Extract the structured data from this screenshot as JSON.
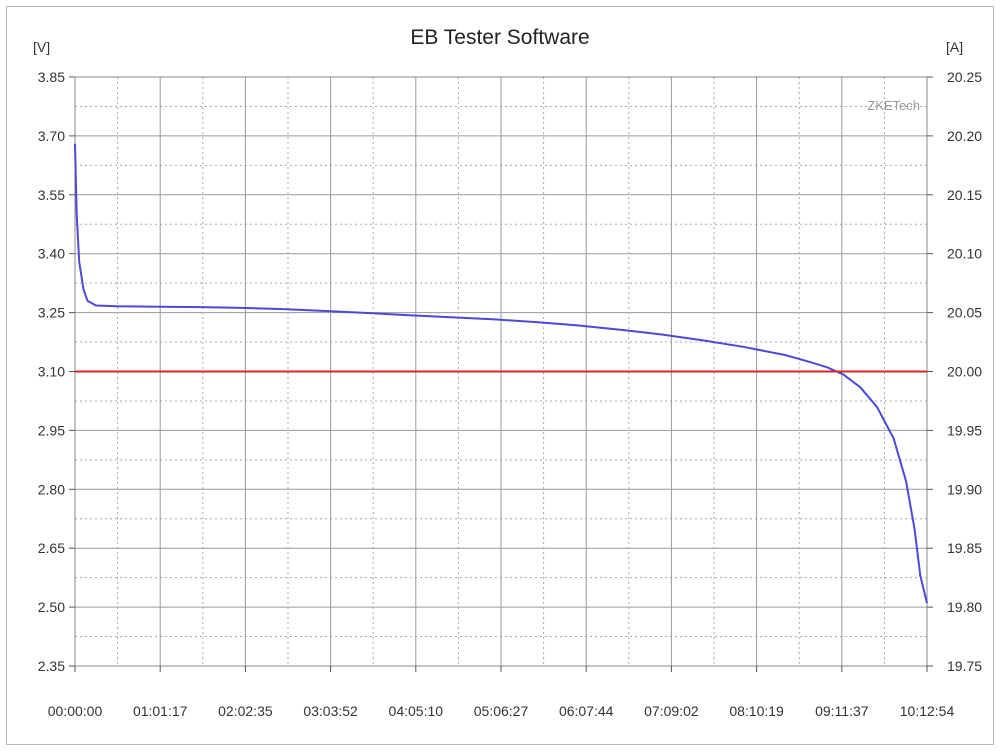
{
  "window": {
    "title": "EB Tester Software"
  },
  "chart_data": {
    "type": "line",
    "title": "EB Tester Software",
    "watermark": "ZKETech",
    "y_left": {
      "unit": "[V]",
      "range": [
        2.35,
        3.85
      ],
      "ticks": [
        "3.85",
        "3.70",
        "3.55",
        "3.40",
        "3.25",
        "3.10",
        "2.95",
        "2.80",
        "2.65",
        "2.50",
        "2.35"
      ]
    },
    "y_right": {
      "unit": "[A]",
      "range": [
        19.75,
        20.25
      ],
      "ticks": [
        "20.25",
        "20.20",
        "20.15",
        "20.10",
        "20.05",
        "20.00",
        "19.95",
        "19.90",
        "19.85",
        "19.80",
        "19.75"
      ]
    },
    "x": {
      "ticks": [
        "00:00:00",
        "01:01:17",
        "02:02:35",
        "03:03:52",
        "04:05:10",
        "05:06:27",
        "06:07:44",
        "07:09:02",
        "08:10:19",
        "09:11:37",
        "10:12:54"
      ]
    },
    "grid": true,
    "series": [
      {
        "axis": "left",
        "color": "#4a4ad8",
        "points": [
          [
            0.0,
            3.68
          ],
          [
            0.02,
            3.5
          ],
          [
            0.05,
            3.38
          ],
          [
            0.1,
            3.31
          ],
          [
            0.15,
            3.28
          ],
          [
            0.25,
            3.268
          ],
          [
            0.5,
            3.266
          ],
          [
            1.0,
            3.265
          ],
          [
            1.5,
            3.264
          ],
          [
            2.0,
            3.262
          ],
          [
            2.5,
            3.259
          ],
          [
            3.0,
            3.254
          ],
          [
            3.5,
            3.249
          ],
          [
            4.0,
            3.243
          ],
          [
            4.5,
            3.238
          ],
          [
            5.0,
            3.233
          ],
          [
            5.5,
            3.226
          ],
          [
            6.0,
            3.218
          ],
          [
            6.5,
            3.207
          ],
          [
            7.0,
            3.195
          ],
          [
            7.5,
            3.18
          ],
          [
            8.0,
            3.163
          ],
          [
            8.5,
            3.142
          ],
          [
            8.8,
            3.124
          ],
          [
            9.0,
            3.111
          ],
          [
            9.2,
            3.092
          ],
          [
            9.4,
            3.06
          ],
          [
            9.6,
            3.01
          ],
          [
            9.8,
            2.93
          ],
          [
            9.95,
            2.82
          ],
          [
            10.05,
            2.7
          ],
          [
            10.12,
            2.58
          ],
          [
            10.2,
            2.51
          ]
        ]
      },
      {
        "axis": "right",
        "color": "#d22828",
        "points": [
          [
            0.0,
            20.0
          ],
          [
            10.2,
            20.0
          ]
        ]
      }
    ]
  }
}
